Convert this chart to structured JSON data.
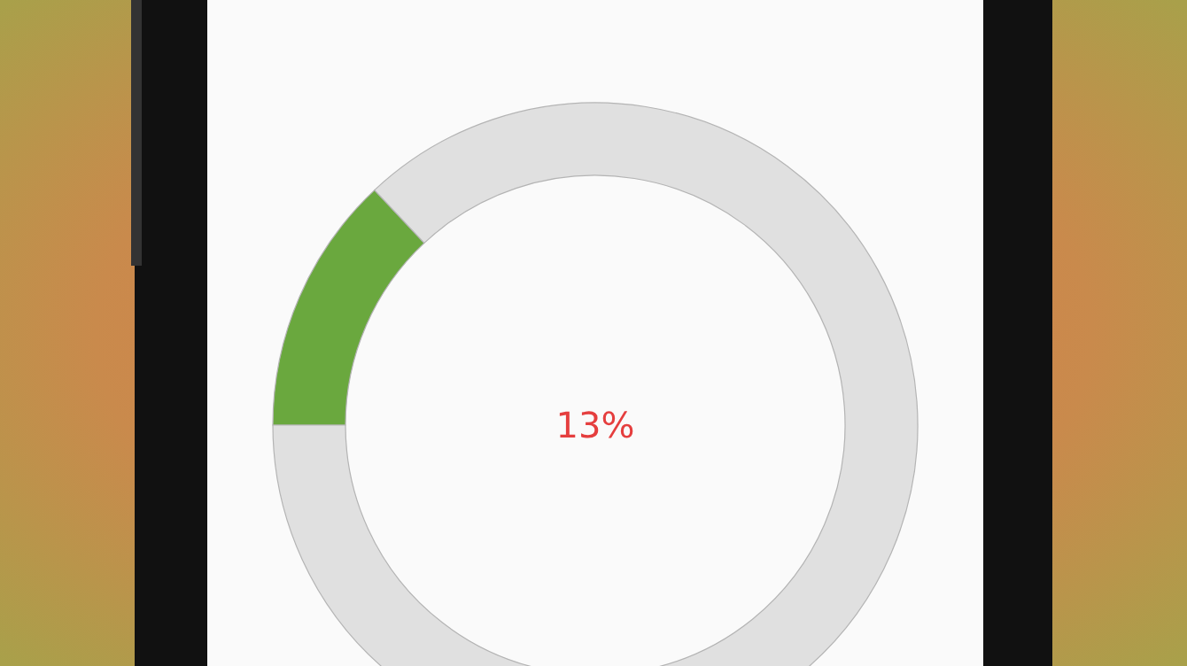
{
  "chart_data": {
    "type": "donut",
    "categories": [
      null,
      null
    ],
    "values": [
      13,
      87
    ],
    "colors": [
      "#6aa83e",
      "#e0e0e0"
    ],
    "annotations": [
      "13%"
    ]
  }
}
